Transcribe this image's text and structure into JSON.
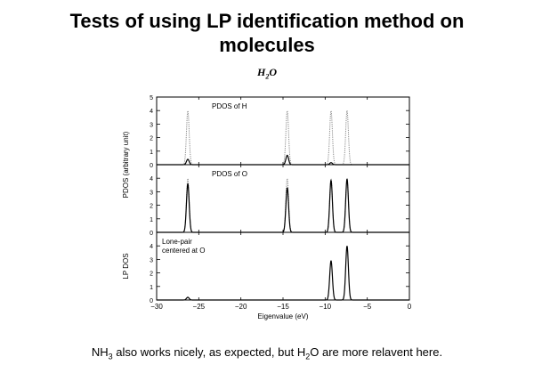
{
  "slide": {
    "title_line1": "Tests of using LP identification method on",
    "title_line2": "molecules",
    "molecule_main": "H",
    "molecule_sub": "2",
    "molecule_end": "O",
    "caption_a": "NH",
    "caption_sub1": "3",
    "caption_b": " also works nicely, as expected, but H",
    "caption_sub2": "2",
    "caption_c": "O are more relavent here."
  },
  "chart_data": {
    "type": "line",
    "xlabel": "Eigenvalue (eV)",
    "xlim": [
      -30,
      0
    ],
    "xticks": [
      -30,
      -25,
      -20,
      -15,
      -10,
      -5,
      0
    ],
    "ylabel_top": "PDOS (arbitrary unit)",
    "ylabel_bottom": "LP DOS",
    "grid": false,
    "panels": [
      {
        "label": "PDOS of H",
        "ylim": [
          0,
          5
        ],
        "yticks": [
          0,
          1,
          2,
          3,
          4,
          5
        ],
        "series": [
          {
            "style": "dotted",
            "peaks": [
              [
                -26.3,
                4.0
              ],
              [
                -14.5,
                4.0
              ],
              [
                -9.3,
                4.0
              ],
              [
                -7.4,
                4.0
              ]
            ]
          },
          {
            "style": "solid",
            "peaks": [
              [
                -26.3,
                0.4
              ],
              [
                -14.5,
                0.7
              ],
              [
                -9.3,
                0.15
              ],
              [
                -7.4,
                0.0
              ]
            ]
          }
        ]
      },
      {
        "label": "PDOS of O",
        "ylim": [
          0,
          5
        ],
        "yticks": [
          0,
          1,
          2,
          3,
          4
        ],
        "series": [
          {
            "style": "dotted",
            "peaks": [
              [
                -26.3,
                4.0
              ],
              [
                -14.5,
                4.0
              ],
              [
                -9.3,
                4.0
              ],
              [
                -7.4,
                4.0
              ]
            ]
          },
          {
            "style": "solid",
            "peaks": [
              [
                -26.3,
                3.6
              ],
              [
                -14.5,
                3.3
              ],
              [
                -9.3,
                3.85
              ],
              [
                -7.4,
                3.95
              ]
            ]
          }
        ]
      },
      {
        "label_line1": "Lone-pair",
        "label_line2": "centered at O",
        "ylim": [
          0,
          5
        ],
        "yticks": [
          0,
          1,
          2,
          3,
          4
        ],
        "series": [
          {
            "style": "solid",
            "peaks": [
              [
                -26.3,
                0.2
              ],
              [
                -14.5,
                0.0
              ],
              [
                -9.3,
                2.9
              ],
              [
                -7.4,
                4.0
              ]
            ]
          }
        ]
      }
    ]
  }
}
